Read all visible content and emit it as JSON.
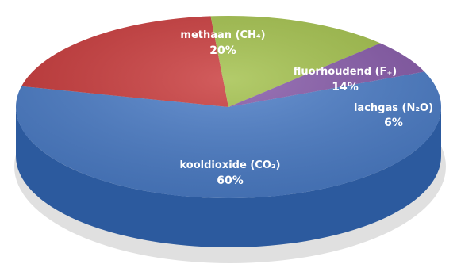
{
  "chart_data": {
    "type": "pie",
    "title": "",
    "categories": [
      "kooldioxide (CO₂)",
      "methaan (CH₄)",
      "fluorhoudend (F₊)",
      "lachgas (N₂O)"
    ],
    "values": [
      60,
      20,
      14,
      6
    ],
    "value_labels": [
      "60%",
      "20%",
      "14%",
      "6%"
    ],
    "colors": [
      "#4a7cc7",
      "#c9393a",
      "#a2c04a",
      "#8558a8"
    ],
    "side_colors": [
      "#2c5a9e",
      "#8e2426",
      "#6f8a2c",
      "#5c3a79"
    ],
    "style": "3d",
    "legend": "none"
  }
}
